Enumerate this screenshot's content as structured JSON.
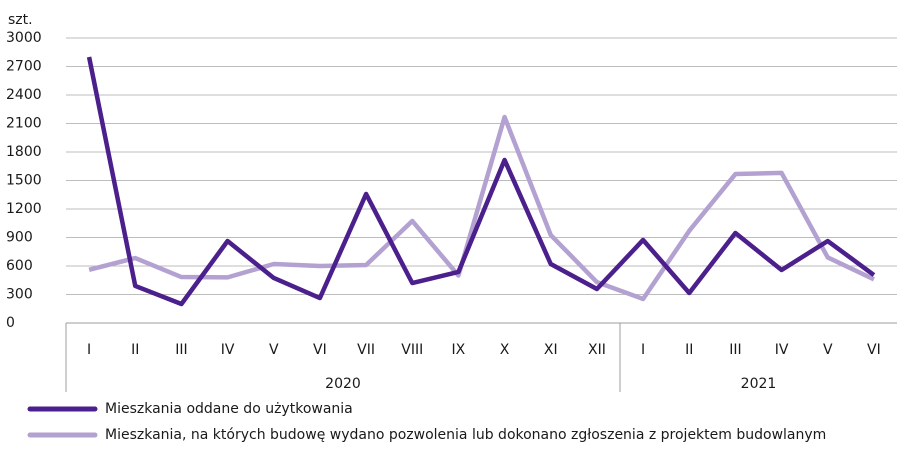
{
  "chart_data": {
    "type": "line",
    "unit_label": "szt.",
    "categories": [
      "I",
      "II",
      "III",
      "IV",
      "V",
      "VI",
      "VII",
      "VIII",
      "IX",
      "X",
      "XI",
      "XII",
      "I",
      "II",
      "III",
      "IV",
      "V",
      "VI"
    ],
    "groups": [
      {
        "label": "2020",
        "start": 0,
        "end": 11
      },
      {
        "label": "2021",
        "start": 12,
        "end": 17
      }
    ],
    "series": [
      {
        "name": "Mieszkania oddane do użytkowania",
        "color": "#4b1f8c",
        "values": [
          2800,
          390,
          200,
          863,
          474,
          263,
          1358,
          421,
          537,
          1716,
          621,
          358,
          874,
          316,
          947,
          558,
          863,
          505
        ]
      },
      {
        "name": "Mieszkania, na których budowę wydano pozwolenia lub dokonano zgłoszenia z projektem budowlanym",
        "color": "#b3a2d1",
        "values": [
          560,
          684,
          484,
          480,
          621,
          600,
          610,
          1074,
          500,
          2168,
          926,
          430,
          253,
          970,
          1568,
          1580,
          690,
          460
        ]
      }
    ],
    "ylim": [
      0,
      3000
    ],
    "yticks": [
      0,
      300,
      600,
      900,
      1200,
      1500,
      1800,
      2100,
      2400,
      2700,
      3000
    ],
    "grid": true
  }
}
